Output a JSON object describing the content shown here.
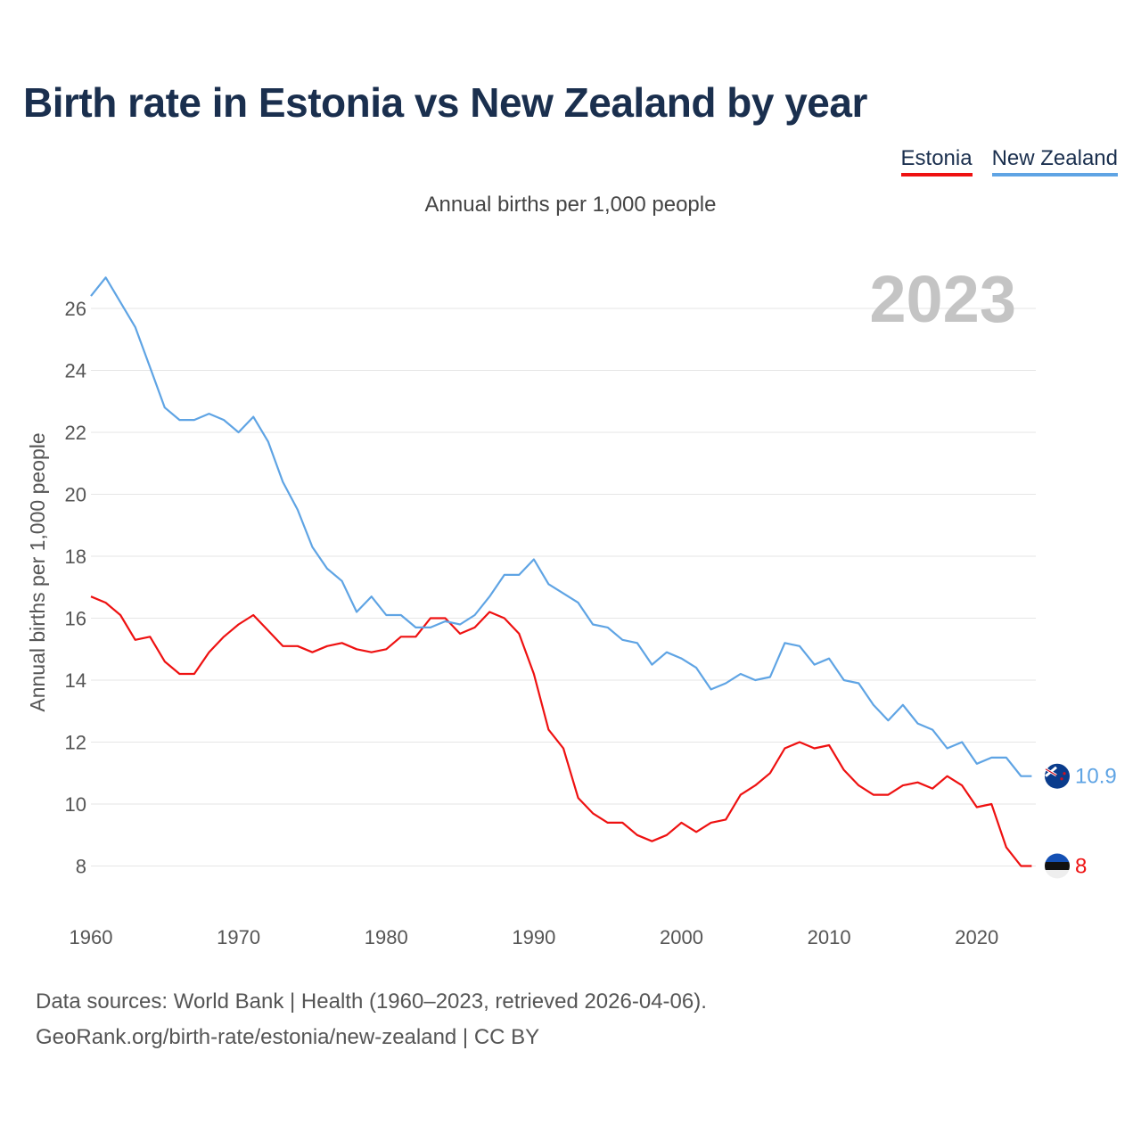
{
  "header": {
    "title": "Birth rate in Estonia vs New Zealand by year",
    "subtitle": "Annual births per 1,000 people"
  },
  "legend": [
    {
      "label": "Estonia",
      "color": "#ee1111"
    },
    {
      "label": "New Zealand",
      "color": "#5fa4e4"
    }
  ],
  "footer": {
    "line1": "Data sources: World Bank | Health (1960–2023, retrieved 2026-04-06).",
    "line2": "GeoRank.org/birth-rate/estonia/new-zealand | CC BY"
  },
  "chart_data": {
    "type": "line",
    "title": "Birth rate in Estonia vs New Zealand by year",
    "subtitle": "Annual births per 1,000 people",
    "ylabel": "Annual births per 1,000 people",
    "xlabel": "",
    "year_watermark": "2023",
    "xlim": [
      1960,
      2024
    ],
    "ylim": [
      7,
      27
    ],
    "yticks": [
      8,
      10,
      12,
      14,
      16,
      18,
      20,
      22,
      24,
      26
    ],
    "xticks": [
      1960,
      1970,
      1980,
      1990,
      2000,
      2010,
      2020
    ],
    "grid": true,
    "legend_position": "top-right",
    "x": [
      1960,
      1961,
      1962,
      1963,
      1964,
      1965,
      1966,
      1967,
      1968,
      1969,
      1970,
      1971,
      1972,
      1973,
      1974,
      1975,
      1976,
      1977,
      1978,
      1979,
      1980,
      1981,
      1982,
      1983,
      1984,
      1985,
      1986,
      1987,
      1988,
      1989,
      1990,
      1991,
      1992,
      1993,
      1994,
      1995,
      1996,
      1997,
      1998,
      1999,
      2000,
      2001,
      2002,
      2003,
      2004,
      2005,
      2006,
      2007,
      2008,
      2009,
      2010,
      2011,
      2012,
      2013,
      2014,
      2015,
      2016,
      2017,
      2018,
      2019,
      2020,
      2021,
      2022,
      2023
    ],
    "series": [
      {
        "name": "Estonia",
        "color": "#ee1111",
        "end_label": "8",
        "values": [
          16.7,
          16.5,
          16.1,
          15.3,
          15.4,
          14.6,
          14.2,
          14.2,
          14.9,
          15.4,
          15.8,
          16.1,
          15.6,
          15.1,
          15.1,
          14.9,
          15.1,
          15.2,
          15.0,
          14.9,
          15.0,
          15.4,
          15.4,
          16.0,
          16.0,
          15.5,
          15.7,
          16.2,
          16.0,
          15.5,
          14.2,
          12.4,
          11.8,
          10.2,
          9.7,
          9.4,
          9.4,
          9.0,
          8.8,
          9.0,
          9.4,
          9.1,
          9.4,
          9.5,
          10.3,
          10.6,
          11.0,
          11.8,
          12.0,
          11.8,
          11.9,
          11.1,
          10.6,
          10.3,
          10.3,
          10.6,
          10.7,
          10.5,
          10.9,
          10.6,
          9.9,
          10.0,
          8.6,
          8.0
        ]
      },
      {
        "name": "New Zealand",
        "color": "#5fa4e4",
        "end_label": "10.9",
        "values": [
          26.4,
          27.0,
          26.2,
          25.4,
          24.1,
          22.8,
          22.4,
          22.4,
          22.6,
          22.4,
          22.0,
          22.5,
          21.7,
          20.4,
          19.5,
          18.3,
          17.6,
          17.2,
          16.2,
          16.7,
          16.1,
          16.1,
          15.7,
          15.7,
          15.9,
          15.8,
          16.1,
          16.7,
          17.4,
          17.4,
          17.9,
          17.1,
          16.8,
          16.5,
          15.8,
          15.7,
          15.3,
          15.2,
          14.5,
          14.9,
          14.7,
          14.4,
          13.7,
          13.9,
          14.2,
          14.0,
          14.1,
          15.2,
          15.1,
          14.5,
          14.7,
          14.0,
          13.9,
          13.2,
          12.7,
          13.2,
          12.6,
          12.4,
          11.8,
          12.0,
          11.3,
          11.5,
          11.5,
          10.9
        ]
      }
    ]
  }
}
